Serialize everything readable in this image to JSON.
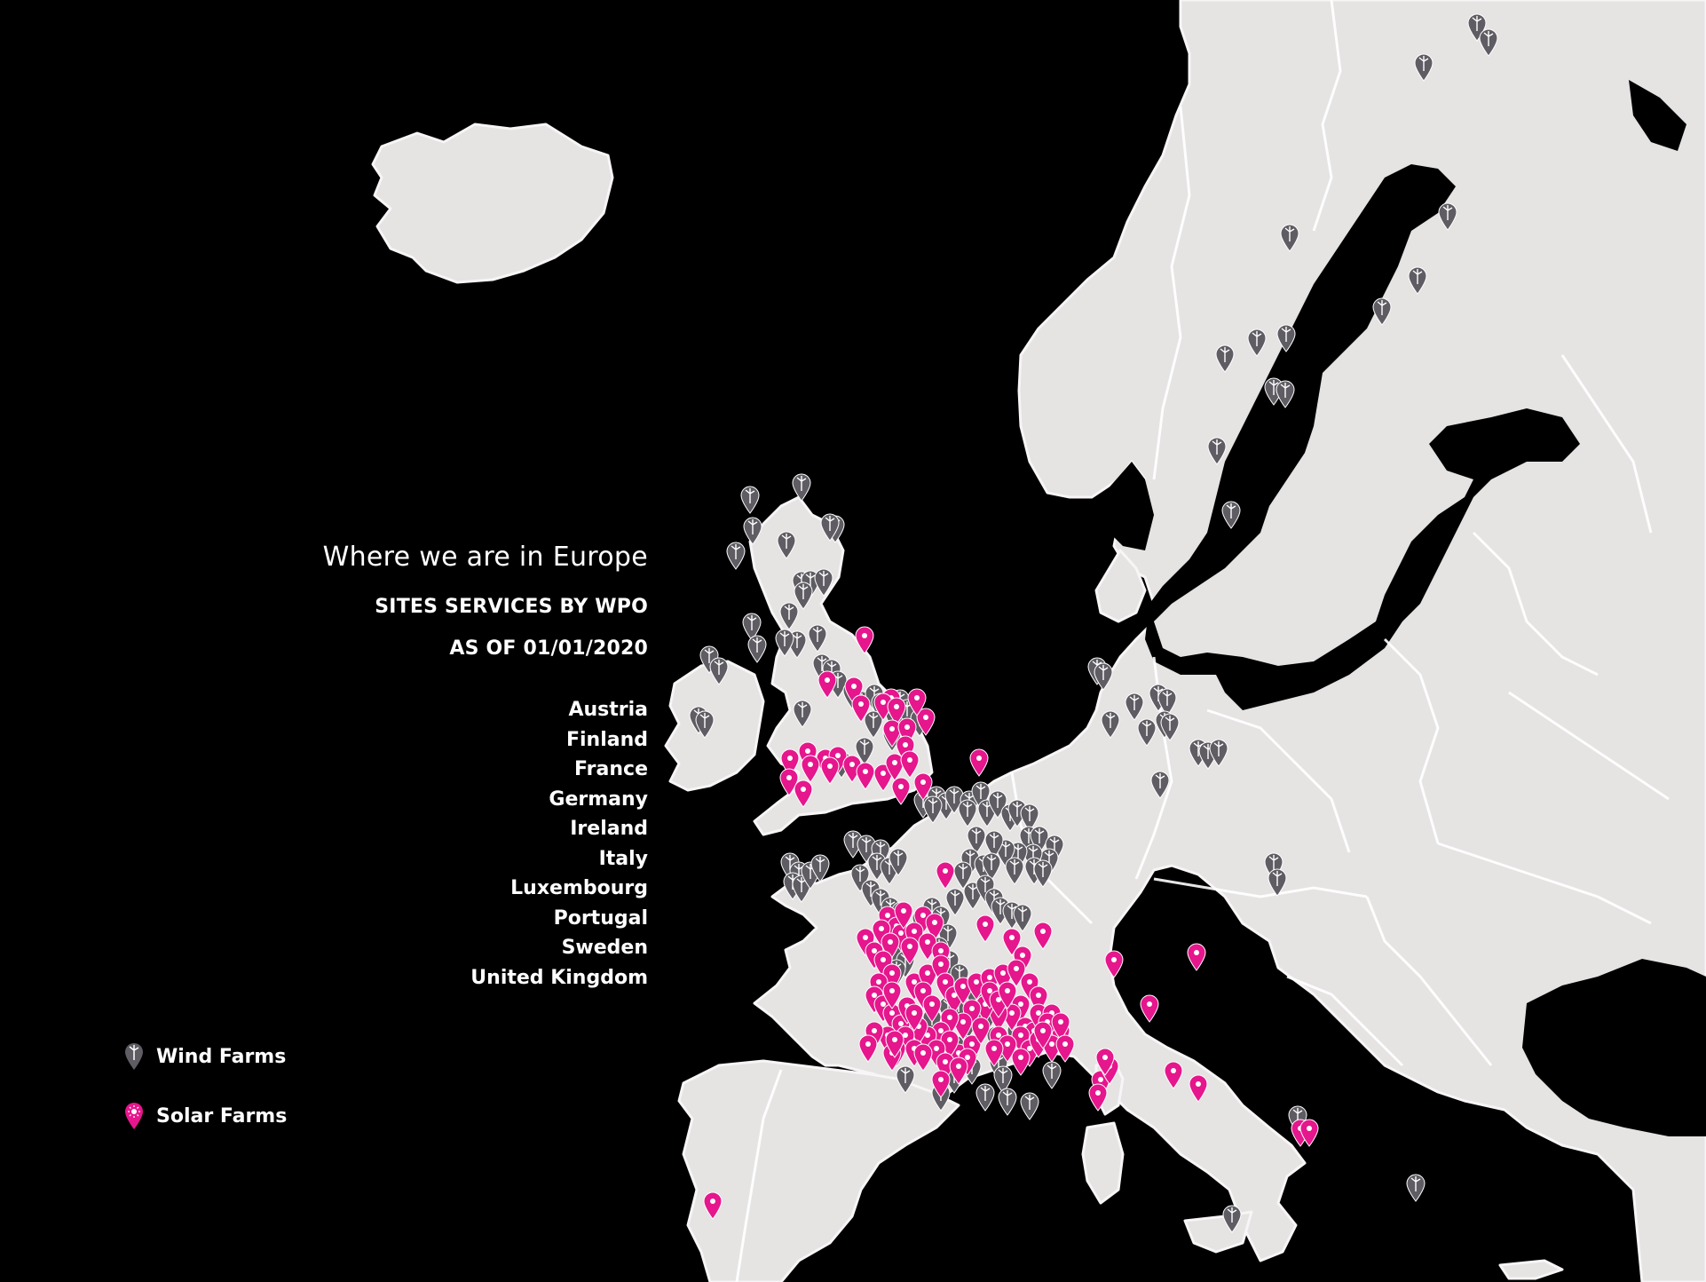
{
  "title": "Where we are in Europe",
  "subtitle": "SITES SERVICES BY WPO",
  "date_line": "AS OF 01/01/2020",
  "countries": [
    "Austria",
    "Finland",
    "France",
    "Germany",
    "Ireland",
    "Italy",
    "Luxembourg",
    "Portugal",
    "Sweden",
    "United Kingdom"
  ],
  "legend": [
    {
      "label": "Wind Farms",
      "icon": "wind-marker-icon",
      "color": "#5f5d63"
    },
    {
      "label": "Solar Farms",
      "icon": "solar-marker-icon",
      "color": "#e6168c"
    }
  ],
  "colors": {
    "background": "#000000",
    "land": "#e6e3e3",
    "wind": "#5f5d63",
    "solar": "#e6168c"
  },
  "markers": {
    "wind": [
      [
        1664,
        45
      ],
      [
        1677,
        62
      ],
      [
        1604,
        90
      ],
      [
        1453,
        282
      ],
      [
        1631,
        258
      ],
      [
        1597,
        330
      ],
      [
        1557,
        365
      ],
      [
        1380,
        418
      ],
      [
        1416,
        400
      ],
      [
        1449,
        395
      ],
      [
        1435,
        455
      ],
      [
        1448,
        458
      ],
      [
        1371,
        522
      ],
      [
        1387,
        594
      ],
      [
        1236,
        770
      ],
      [
        1243,
        776
      ],
      [
        1278,
        810
      ],
      [
        1305,
        800
      ],
      [
        1315,
        805
      ],
      [
        1251,
        830
      ],
      [
        1292,
        839
      ],
      [
        1312,
        830
      ],
      [
        1318,
        833
      ],
      [
        1350,
        862
      ],
      [
        1361,
        865
      ],
      [
        1373,
        862
      ],
      [
        1307,
        898
      ],
      [
        1435,
        990
      ],
      [
        1439,
        1008
      ],
      [
        845,
        577
      ],
      [
        903,
        563
      ],
      [
        848,
        612
      ],
      [
        886,
        628
      ],
      [
        941,
        610
      ],
      [
        935,
        608
      ],
      [
        829,
        640
      ],
      [
        903,
        673
      ],
      [
        913,
        672
      ],
      [
        928,
        670
      ],
      [
        905,
        685
      ],
      [
        889,
        708
      ],
      [
        898,
        740
      ],
      [
        921,
        733
      ],
      [
        926,
        766
      ],
      [
        937,
        772
      ],
      [
        944,
        785
      ],
      [
        960,
        797
      ],
      [
        971,
        808
      ],
      [
        985,
        800
      ],
      [
        992,
        810
      ],
      [
        1014,
        806
      ],
      [
        1008,
        823
      ],
      [
        1022,
        817
      ],
      [
        1036,
        828
      ],
      [
        1005,
        845
      ],
      [
        847,
        720
      ],
      [
        799,
        757
      ],
      [
        810,
        770
      ],
      [
        787,
        825
      ],
      [
        794,
        830
      ],
      [
        853,
        745
      ],
      [
        884,
        738
      ],
      [
        904,
        818
      ],
      [
        948,
        875
      ],
      [
        974,
        860
      ],
      [
        984,
        830
      ],
      [
        1040,
        920
      ],
      [
        1055,
        915
      ],
      [
        1066,
        922
      ],
      [
        1051,
        926
      ],
      [
        1075,
        915
      ],
      [
        1092,
        920
      ],
      [
        1105,
        910
      ],
      [
        1090,
        930
      ],
      [
        1112,
        930
      ],
      [
        1124,
        920
      ],
      [
        1138,
        935
      ],
      [
        1146,
        930
      ],
      [
        1160,
        935
      ],
      [
        1159,
        960
      ],
      [
        1171,
        960
      ],
      [
        1188,
        970
      ],
      [
        1182,
        985
      ],
      [
        1164,
        980
      ],
      [
        1147,
        978
      ],
      [
        1133,
        975
      ],
      [
        1120,
        965
      ],
      [
        1100,
        960
      ],
      [
        1093,
        985
      ],
      [
        1108,
        992
      ],
      [
        1117,
        990
      ],
      [
        1085,
        1000
      ],
      [
        1143,
        995
      ],
      [
        1165,
        995
      ],
      [
        1175,
        998
      ],
      [
        961,
        965
      ],
      [
        976,
        970
      ],
      [
        992,
        975
      ],
      [
        988,
        990
      ],
      [
        1002,
        995
      ],
      [
        1012,
        985
      ],
      [
        969,
        1003
      ],
      [
        981,
        1020
      ],
      [
        992,
        1030
      ],
      [
        1003,
        1040
      ],
      [
        1015,
        1045
      ],
      [
        1038,
        1053
      ],
      [
        1050,
        1040
      ],
      [
        1060,
        1050
      ],
      [
        1076,
        1030
      ],
      [
        1096,
        1023
      ],
      [
        1110,
        1015
      ],
      [
        1120,
        1030
      ],
      [
        1127,
        1040
      ],
      [
        1140,
        1045
      ],
      [
        1152,
        1048
      ],
      [
        1068,
        1070
      ],
      [
        1058,
        1085
      ],
      [
        1070,
        1100
      ],
      [
        1081,
        1115
      ],
      [
        1015,
        1080
      ],
      [
        1005,
        1090
      ],
      [
        1020,
        1100
      ],
      [
        1010,
        1110
      ],
      [
        1080,
        1150
      ],
      [
        1091,
        1168
      ],
      [
        1110,
        1165
      ],
      [
        1122,
        1185
      ],
      [
        1087,
        1195
      ],
      [
        1060,
        1180
      ],
      [
        1050,
        1165
      ],
      [
        1030,
        1190
      ],
      [
        1092,
        1205
      ],
      [
        1125,
        1215
      ],
      [
        1095,
        1220
      ],
      [
        1130,
        1230
      ],
      [
        1075,
        1230
      ],
      [
        1145,
        1180
      ],
      [
        1185,
        1225
      ],
      [
        1068,
        1152
      ],
      [
        1100,
        1140
      ],
      [
        1076,
        1195
      ],
      [
        1020,
        1230
      ],
      [
        1060,
        1250
      ],
      [
        1110,
        1250
      ],
      [
        1135,
        1255
      ],
      [
        1160,
        1260
      ],
      [
        1462,
        1275
      ],
      [
        1595,
        1352
      ],
      [
        1388,
        1387
      ],
      [
        890,
        990
      ],
      [
        900,
        1000
      ],
      [
        893,
        1012
      ],
      [
        903,
        1015
      ],
      [
        913,
        1000
      ],
      [
        924,
        992
      ]
    ],
    "solar": [
      [
        974,
        735
      ],
      [
        1043,
        827
      ],
      [
        1103,
        873
      ],
      [
        932,
        785
      ],
      [
        962,
        792
      ],
      [
        1033,
        805
      ],
      [
        1004,
        805
      ],
      [
        995,
        810
      ],
      [
        970,
        812
      ],
      [
        1010,
        815
      ],
      [
        1005,
        840
      ],
      [
        1022,
        838
      ],
      [
        910,
        865
      ],
      [
        930,
        873
      ],
      [
        944,
        870
      ],
      [
        913,
        880
      ],
      [
        935,
        882
      ],
      [
        960,
        880
      ],
      [
        975,
        888
      ],
      [
        1020,
        858
      ],
      [
        1040,
        900
      ],
      [
        995,
        890
      ],
      [
        1015,
        905
      ],
      [
        1008,
        878
      ],
      [
        1025,
        875
      ],
      [
        890,
        873
      ],
      [
        889,
        895
      ],
      [
        905,
        908
      ],
      [
        1065,
        1000
      ],
      [
        1110,
        1060
      ],
      [
        1140,
        1075
      ],
      [
        1175,
        1068
      ],
      [
        1152,
        1095
      ],
      [
        1040,
        1050
      ],
      [
        1000,
        1050
      ],
      [
        1010,
        1062
      ],
      [
        1015,
        1070
      ],
      [
        1030,
        1068
      ],
      [
        1053,
        1058
      ],
      [
        993,
        1065
      ],
      [
        1003,
        1080
      ],
      [
        1025,
        1085
      ],
      [
        1045,
        1080
      ],
      [
        1060,
        1090
      ],
      [
        975,
        1075
      ],
      [
        985,
        1090
      ],
      [
        995,
        1100
      ],
      [
        1005,
        1115
      ],
      [
        990,
        1125
      ],
      [
        985,
        1140
      ],
      [
        995,
        1150
      ],
      [
        1005,
        1160
      ],
      [
        1015,
        1172
      ],
      [
        1022,
        1152
      ],
      [
        1005,
        1135
      ],
      [
        1030,
        1125
      ],
      [
        1045,
        1115
      ],
      [
        1060,
        1105
      ],
      [
        1040,
        1135
      ],
      [
        1050,
        1150
      ],
      [
        1065,
        1125
      ],
      [
        1075,
        1140
      ],
      [
        1085,
        1130
      ],
      [
        1100,
        1125
      ],
      [
        1115,
        1120
      ],
      [
        1130,
        1115
      ],
      [
        1145,
        1110
      ],
      [
        1160,
        1125
      ],
      [
        1170,
        1140
      ],
      [
        1150,
        1150
      ],
      [
        1140,
        1160
      ],
      [
        1125,
        1160
      ],
      [
        1110,
        1150
      ],
      [
        1095,
        1155
      ],
      [
        1085,
        1170
      ],
      [
        1070,
        1165
      ],
      [
        1060,
        1180
      ],
      [
        1045,
        1185
      ],
      [
        1035,
        1175
      ],
      [
        1020,
        1185
      ],
      [
        1030,
        1200
      ],
      [
        1010,
        1200
      ],
      [
        1000,
        1185
      ],
      [
        1005,
        1205
      ],
      [
        985,
        1180
      ],
      [
        978,
        1195
      ],
      [
        1115,
        1135
      ],
      [
        1125,
        1145
      ],
      [
        1135,
        1135
      ],
      [
        1155,
        1175
      ],
      [
        1165,
        1180
      ],
      [
        1180,
        1175
      ],
      [
        1195,
        1180
      ],
      [
        1170,
        1160
      ],
      [
        1185,
        1160
      ],
      [
        1150,
        1185
      ],
      [
        1080,
        1205
      ],
      [
        1070,
        1190
      ],
      [
        1095,
        1195
      ],
      [
        1105,
        1175
      ],
      [
        1125,
        1185
      ],
      [
        1135,
        1195
      ],
      [
        1160,
        1200
      ],
      [
        1120,
        1200
      ],
      [
        1090,
        1210
      ],
      [
        1055,
        1200
      ],
      [
        1040,
        1205
      ],
      [
        1065,
        1215
      ],
      [
        1060,
        1235
      ],
      [
        1080,
        1220
      ],
      [
        1150,
        1210
      ],
      [
        1170,
        1190
      ],
      [
        1185,
        1195
      ],
      [
        1255,
        1100
      ],
      [
        1295,
        1150
      ],
      [
        1240,
        1235
      ],
      [
        1250,
        1220
      ],
      [
        1245,
        1210
      ],
      [
        1237,
        1250
      ],
      [
        1322,
        1225
      ],
      [
        1350,
        1240
      ],
      [
        1348,
        1092
      ],
      [
        1465,
        1290
      ],
      [
        1475,
        1290
      ],
      [
        803,
        1372
      ],
      [
        1180,
        1170
      ],
      [
        1195,
        1170
      ],
      [
        1175,
        1180
      ],
      [
        1200,
        1195
      ],
      [
        1030,
        1160
      ],
      [
        1008,
        1190
      ],
      [
        1018,
        1045
      ]
    ]
  }
}
